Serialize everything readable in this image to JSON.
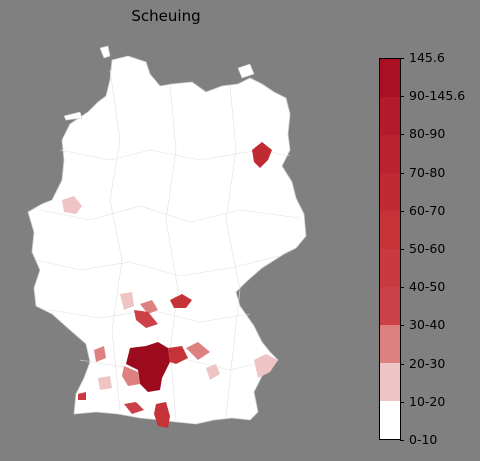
{
  "title": "Scheuing",
  "legend": {
    "ticks": [
      "0-10",
      "10-20",
      "20-30",
      "30-40",
      "40-50",
      "50-60",
      "60-70",
      "70-80",
      "80-90",
      "90-145.6",
      "145.6"
    ],
    "colors": [
      "#ffffff",
      "#eec4c4",
      "#dc8080",
      "#cc4048",
      "#c83a40",
      "#c53238",
      "#c02a32",
      "#ba2230",
      "#b31a2a",
      "#aa1024",
      "#9c0a1e"
    ]
  },
  "map": {
    "country": "Germany",
    "base_color": "#ffffff",
    "border_color": "#c8c8c8"
  }
}
